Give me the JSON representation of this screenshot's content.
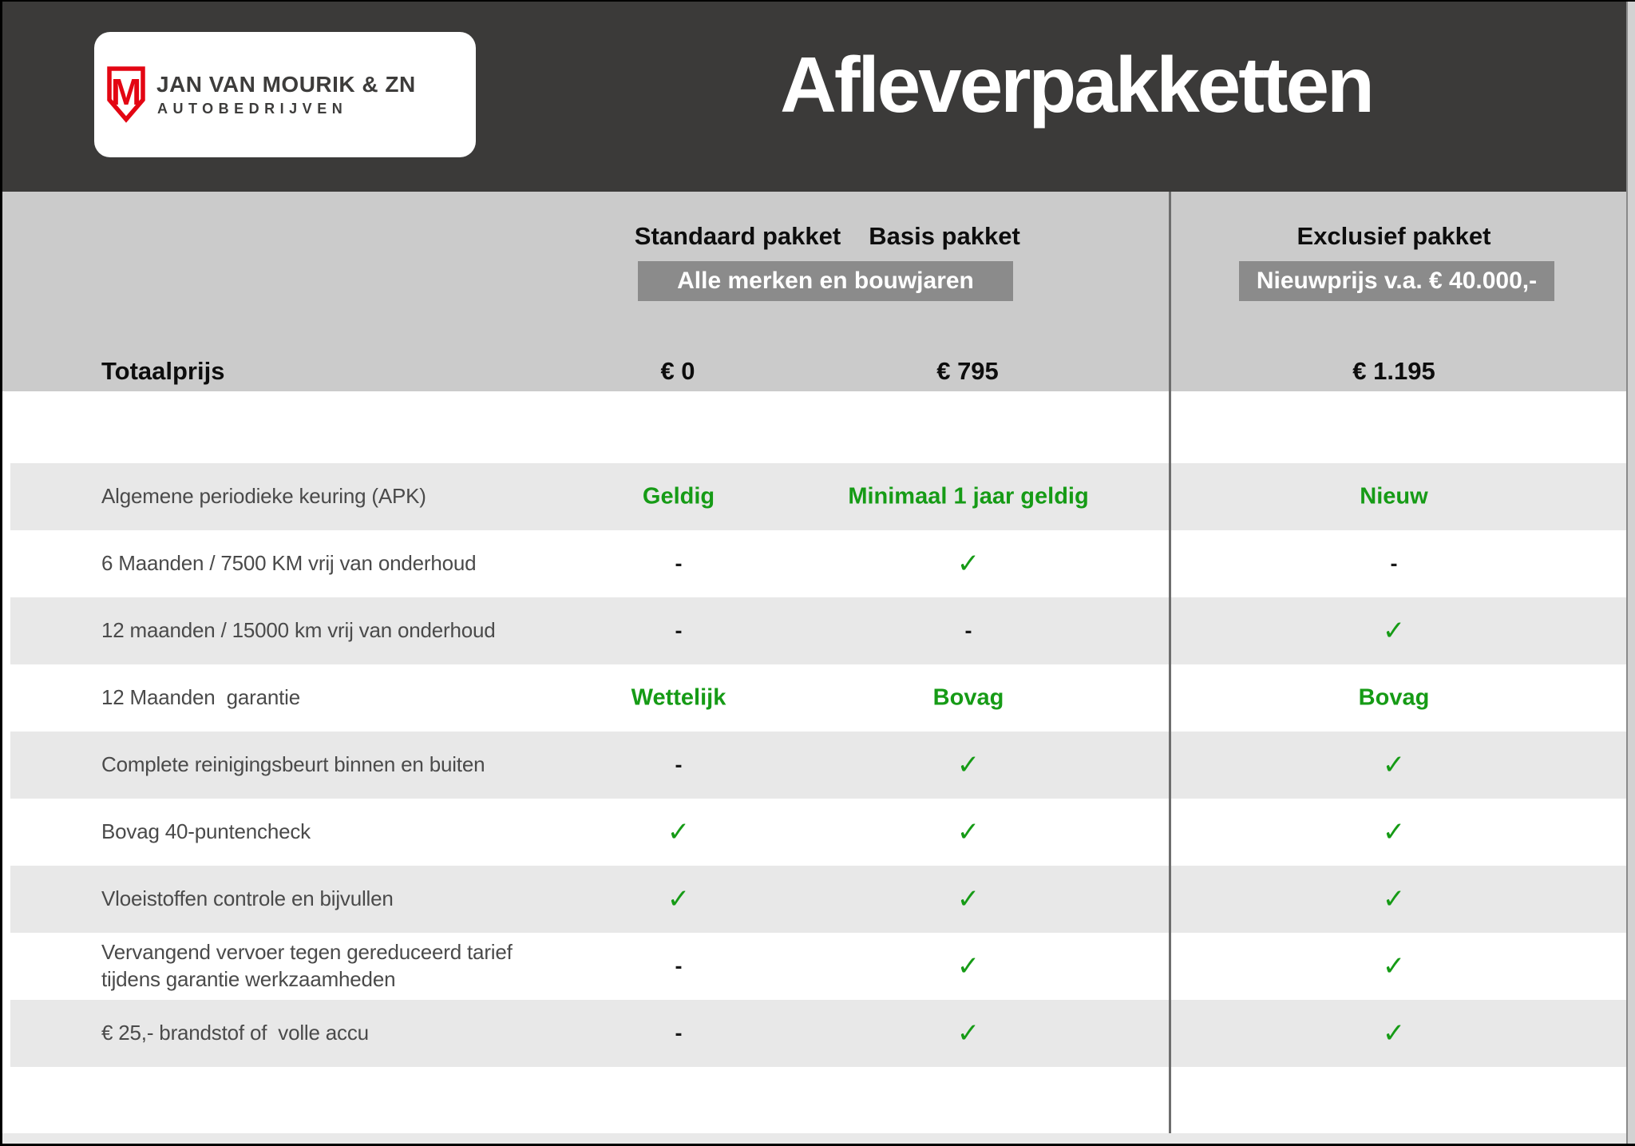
{
  "title": "Afleverpakketten",
  "logo": {
    "monogram": "M",
    "company": "JAN VAN MOURIK & ZN",
    "subtitle": "AUTOBEDRIJVEN"
  },
  "columns": [
    {
      "label": "Standaard pakket"
    },
    {
      "label": "Basis pakket"
    },
    {
      "label": "Exclusief pakket"
    }
  ],
  "badges": {
    "all_brands": "Alle merken en bouwjaren",
    "new_price": "Nieuwprijs v.a. € 40.000,-"
  },
  "totals": {
    "label": "Totaalprijs",
    "standaard": "€ 0",
    "basis": "€ 795",
    "exclusief": "€ 1.195"
  },
  "glyphs": {
    "check": "✓",
    "dash": "-"
  },
  "rows": [
    {
      "label": "Algemene periodieke keuring (APK)",
      "values": [
        "Geldig",
        "Minimaal 1 jaar geldig",
        "Nieuw"
      ]
    },
    {
      "label": "6 Maanden / 7500 KM vrij van onderhoud",
      "values": [
        "dash",
        "check",
        "dash"
      ]
    },
    {
      "label": "12 maanden / 15000 km vrij van onderhoud",
      "values": [
        "dash",
        "dash",
        "check"
      ]
    },
    {
      "label": "12 Maanden  garantie",
      "values": [
        "Wettelijk",
        "Bovag",
        "Bovag"
      ]
    },
    {
      "label": "Complete reinigingsbeurt binnen en buiten",
      "values": [
        "dash",
        "check",
        "check"
      ]
    },
    {
      "label": "Bovag 40-puntencheck",
      "values": [
        "check",
        "check",
        "check"
      ]
    },
    {
      "label": "Vloeistoffen controle en bijvullen",
      "values": [
        "check",
        "check",
        "check"
      ]
    },
    {
      "label": "Vervangend vervoer tegen gereduceerd tarief\ntijdens garantie werkzaamheden",
      "values": [
        "dash",
        "check",
        "check"
      ]
    },
    {
      "label": "€ 25,- brandstof of  volle accu",
      "values": [
        "dash",
        "check",
        "check"
      ]
    }
  ],
  "colors": {
    "masthead": "#3b3a39",
    "band": "#cbcbcb",
    "badge": "#8b8b8b",
    "row_alt": "#e8e8e8",
    "green": "#169b16",
    "logo_red": "#e30613"
  }
}
